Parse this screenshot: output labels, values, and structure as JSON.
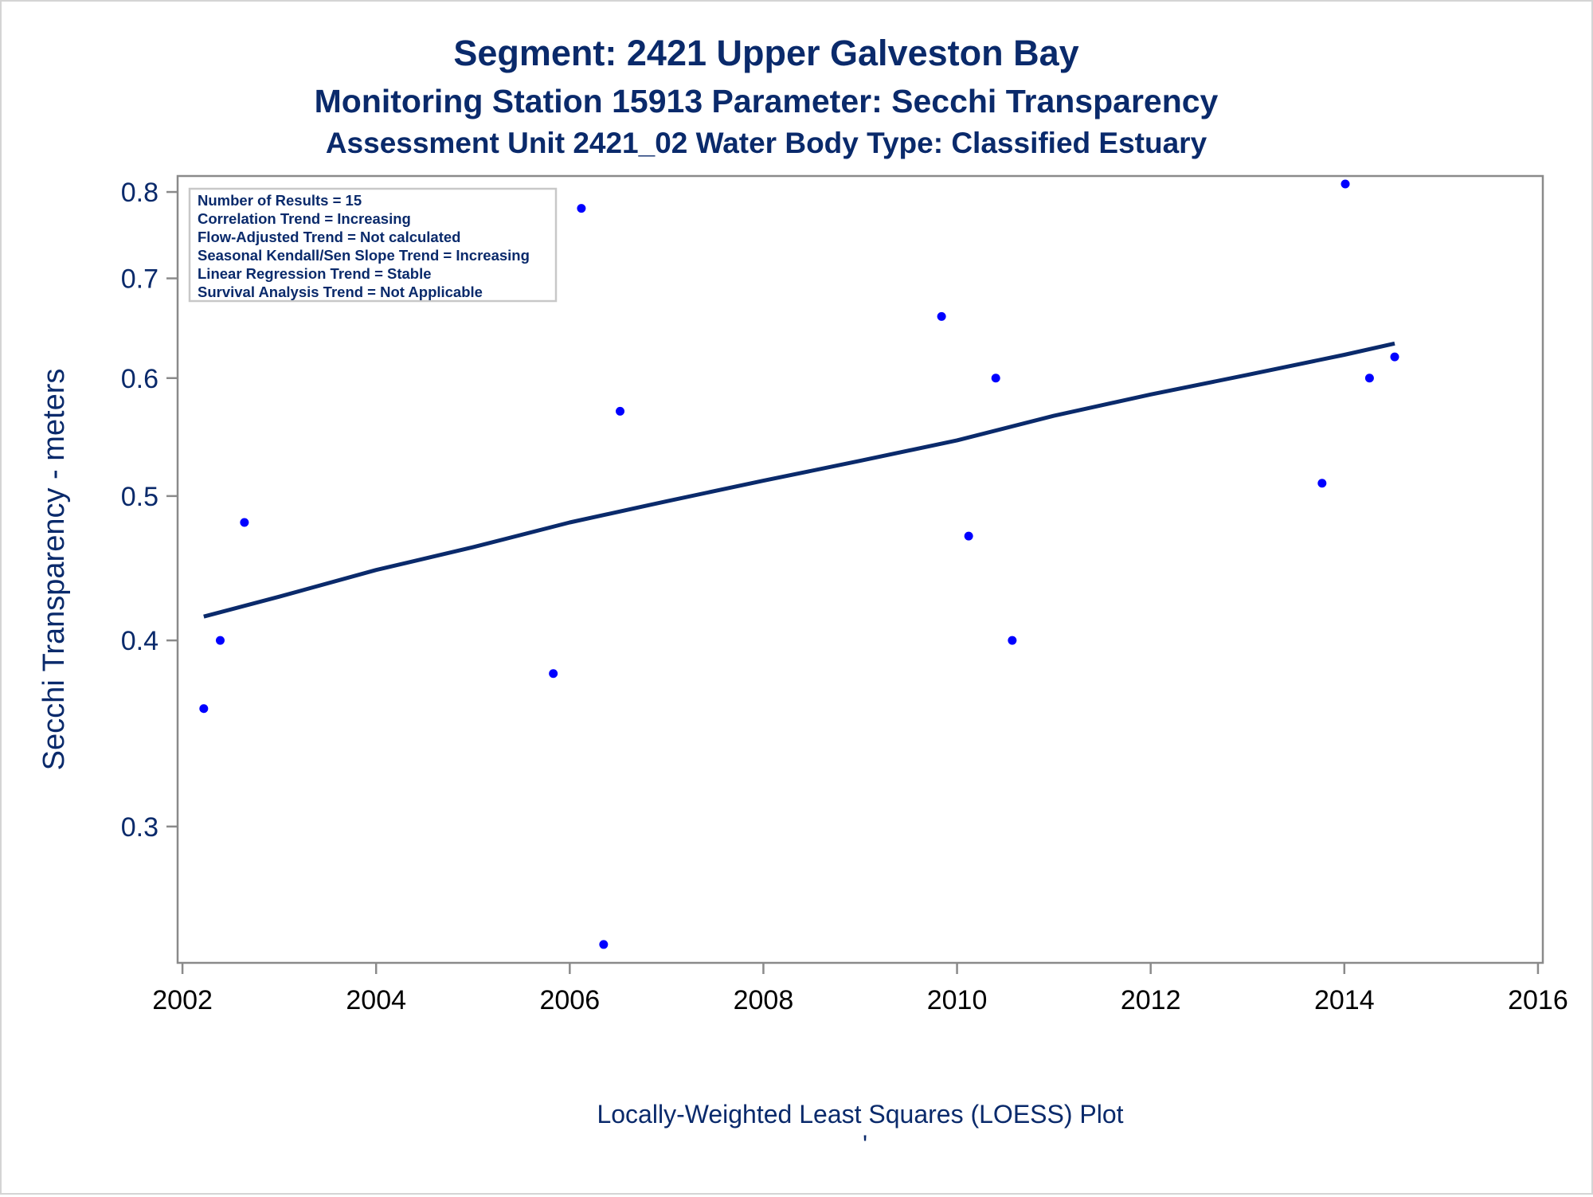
{
  "chart_data": {
    "type": "scatter",
    "title": "Segment: 2421  Upper Galveston Bay",
    "subtitle": "Monitoring Station 15913 Parameter: Secchi Transparency",
    "subtitle2": "Assessment Unit 2421_02   Water Body Type: Classified Estuary",
    "ylabel": "Secchi Transparency - meters",
    "xlabel": "Locally-Weighted Least Squares (LOESS) Plot",
    "footnote_mark": "'",
    "y_scale": "log",
    "xlim": [
      2001.95,
      2016.05
    ],
    "ylim": [
      0.243,
      0.82
    ],
    "x_ticks": [
      2002,
      2004,
      2006,
      2008,
      2010,
      2012,
      2014,
      2016
    ],
    "x_tick_labels": [
      "2002",
      "2004",
      "2006",
      "2008",
      "2010",
      "2012",
      "2014",
      "2016"
    ],
    "y_ticks": [
      0.3,
      0.4,
      0.5,
      0.6,
      0.7,
      0.8
    ],
    "y_tick_labels": [
      "0.3",
      "0.4",
      "0.5",
      "0.6",
      "0.7",
      "0.8"
    ],
    "grid": false,
    "point_color": "#0000ff",
    "line_color": "#0a2a6b",
    "points": [
      {
        "x": 2002.22,
        "y": 0.36
      },
      {
        "x": 2002.39,
        "y": 0.4
      },
      {
        "x": 2002.64,
        "y": 0.48
      },
      {
        "x": 2005.83,
        "y": 0.38
      },
      {
        "x": 2006.12,
        "y": 0.78
      },
      {
        "x": 2006.35,
        "y": 0.25
      },
      {
        "x": 2006.52,
        "y": 0.57
      },
      {
        "x": 2009.84,
        "y": 0.66
      },
      {
        "x": 2010.12,
        "y": 0.47
      },
      {
        "x": 2010.4,
        "y": 0.6
      },
      {
        "x": 2010.57,
        "y": 0.4
      },
      {
        "x": 2013.77,
        "y": 0.51
      },
      {
        "x": 2014.01,
        "y": 0.81
      },
      {
        "x": 2014.26,
        "y": 0.6
      },
      {
        "x": 2014.52,
        "y": 0.62
      }
    ],
    "trend_line": {
      "x": [
        2002.22,
        2003.0,
        2004.0,
        2005.0,
        2006.0,
        2007.0,
        2008.0,
        2009.0,
        2010.0,
        2011.0,
        2012.0,
        2013.0,
        2014.0,
        2014.52
      ],
      "y": [
        0.415,
        0.428,
        0.446,
        0.462,
        0.48,
        0.496,
        0.512,
        0.528,
        0.545,
        0.566,
        0.585,
        0.603,
        0.622,
        0.633
      ]
    },
    "stats_box": {
      "position": "top-left",
      "lines": [
        "Number of Results = 15",
        "Correlation Trend = Increasing",
        "Flow-Adjusted Trend = Not calculated",
        "Seasonal Kendall/Sen Slope Trend = Increasing",
        "Linear Regression Trend = Stable",
        "Survival Analysis Trend = Not Applicable"
      ]
    }
  }
}
